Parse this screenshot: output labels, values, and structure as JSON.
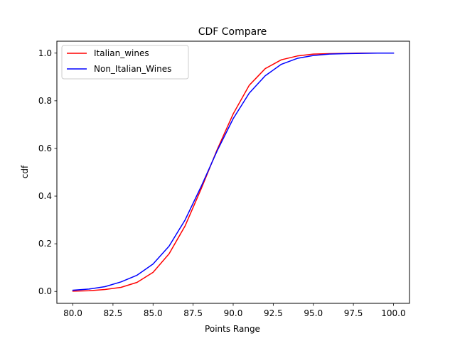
{
  "chart_data": {
    "type": "line",
    "title": "CDF Compare",
    "xlabel": "Points Range",
    "ylabel": "cdf",
    "xlim": [
      79.0,
      101.0
    ],
    "ylim": [
      -0.05,
      1.05
    ],
    "xticks": [
      "80.0",
      "82.5",
      "85.0",
      "87.5",
      "90.0",
      "92.5",
      "95.0",
      "97.5",
      "100.0"
    ],
    "yticks": [
      "0.0",
      "0.2",
      "0.4",
      "0.6",
      "0.8",
      "1.0"
    ],
    "grid": false,
    "legend_position": "top-left",
    "x": [
      80,
      81,
      82,
      83,
      84,
      85,
      86,
      87,
      88,
      89,
      90,
      91,
      92,
      93,
      94,
      95,
      96,
      97,
      98,
      99,
      100
    ],
    "series": [
      {
        "name": "Italian_wines",
        "color": "#ff0000",
        "values": [
          0.001,
          0.003,
          0.008,
          0.017,
          0.038,
          0.08,
          0.158,
          0.275,
          0.43,
          0.595,
          0.745,
          0.865,
          0.935,
          0.972,
          0.988,
          0.996,
          0.998,
          0.999,
          1.0,
          1.0,
          1.0
        ]
      },
      {
        "name": "Non_Italian_Wines",
        "color": "#0000ff",
        "values": [
          0.005,
          0.01,
          0.02,
          0.04,
          0.068,
          0.115,
          0.19,
          0.3,
          0.44,
          0.59,
          0.725,
          0.832,
          0.905,
          0.953,
          0.978,
          0.99,
          0.996,
          0.998,
          0.999,
          1.0,
          1.0
        ]
      }
    ]
  }
}
